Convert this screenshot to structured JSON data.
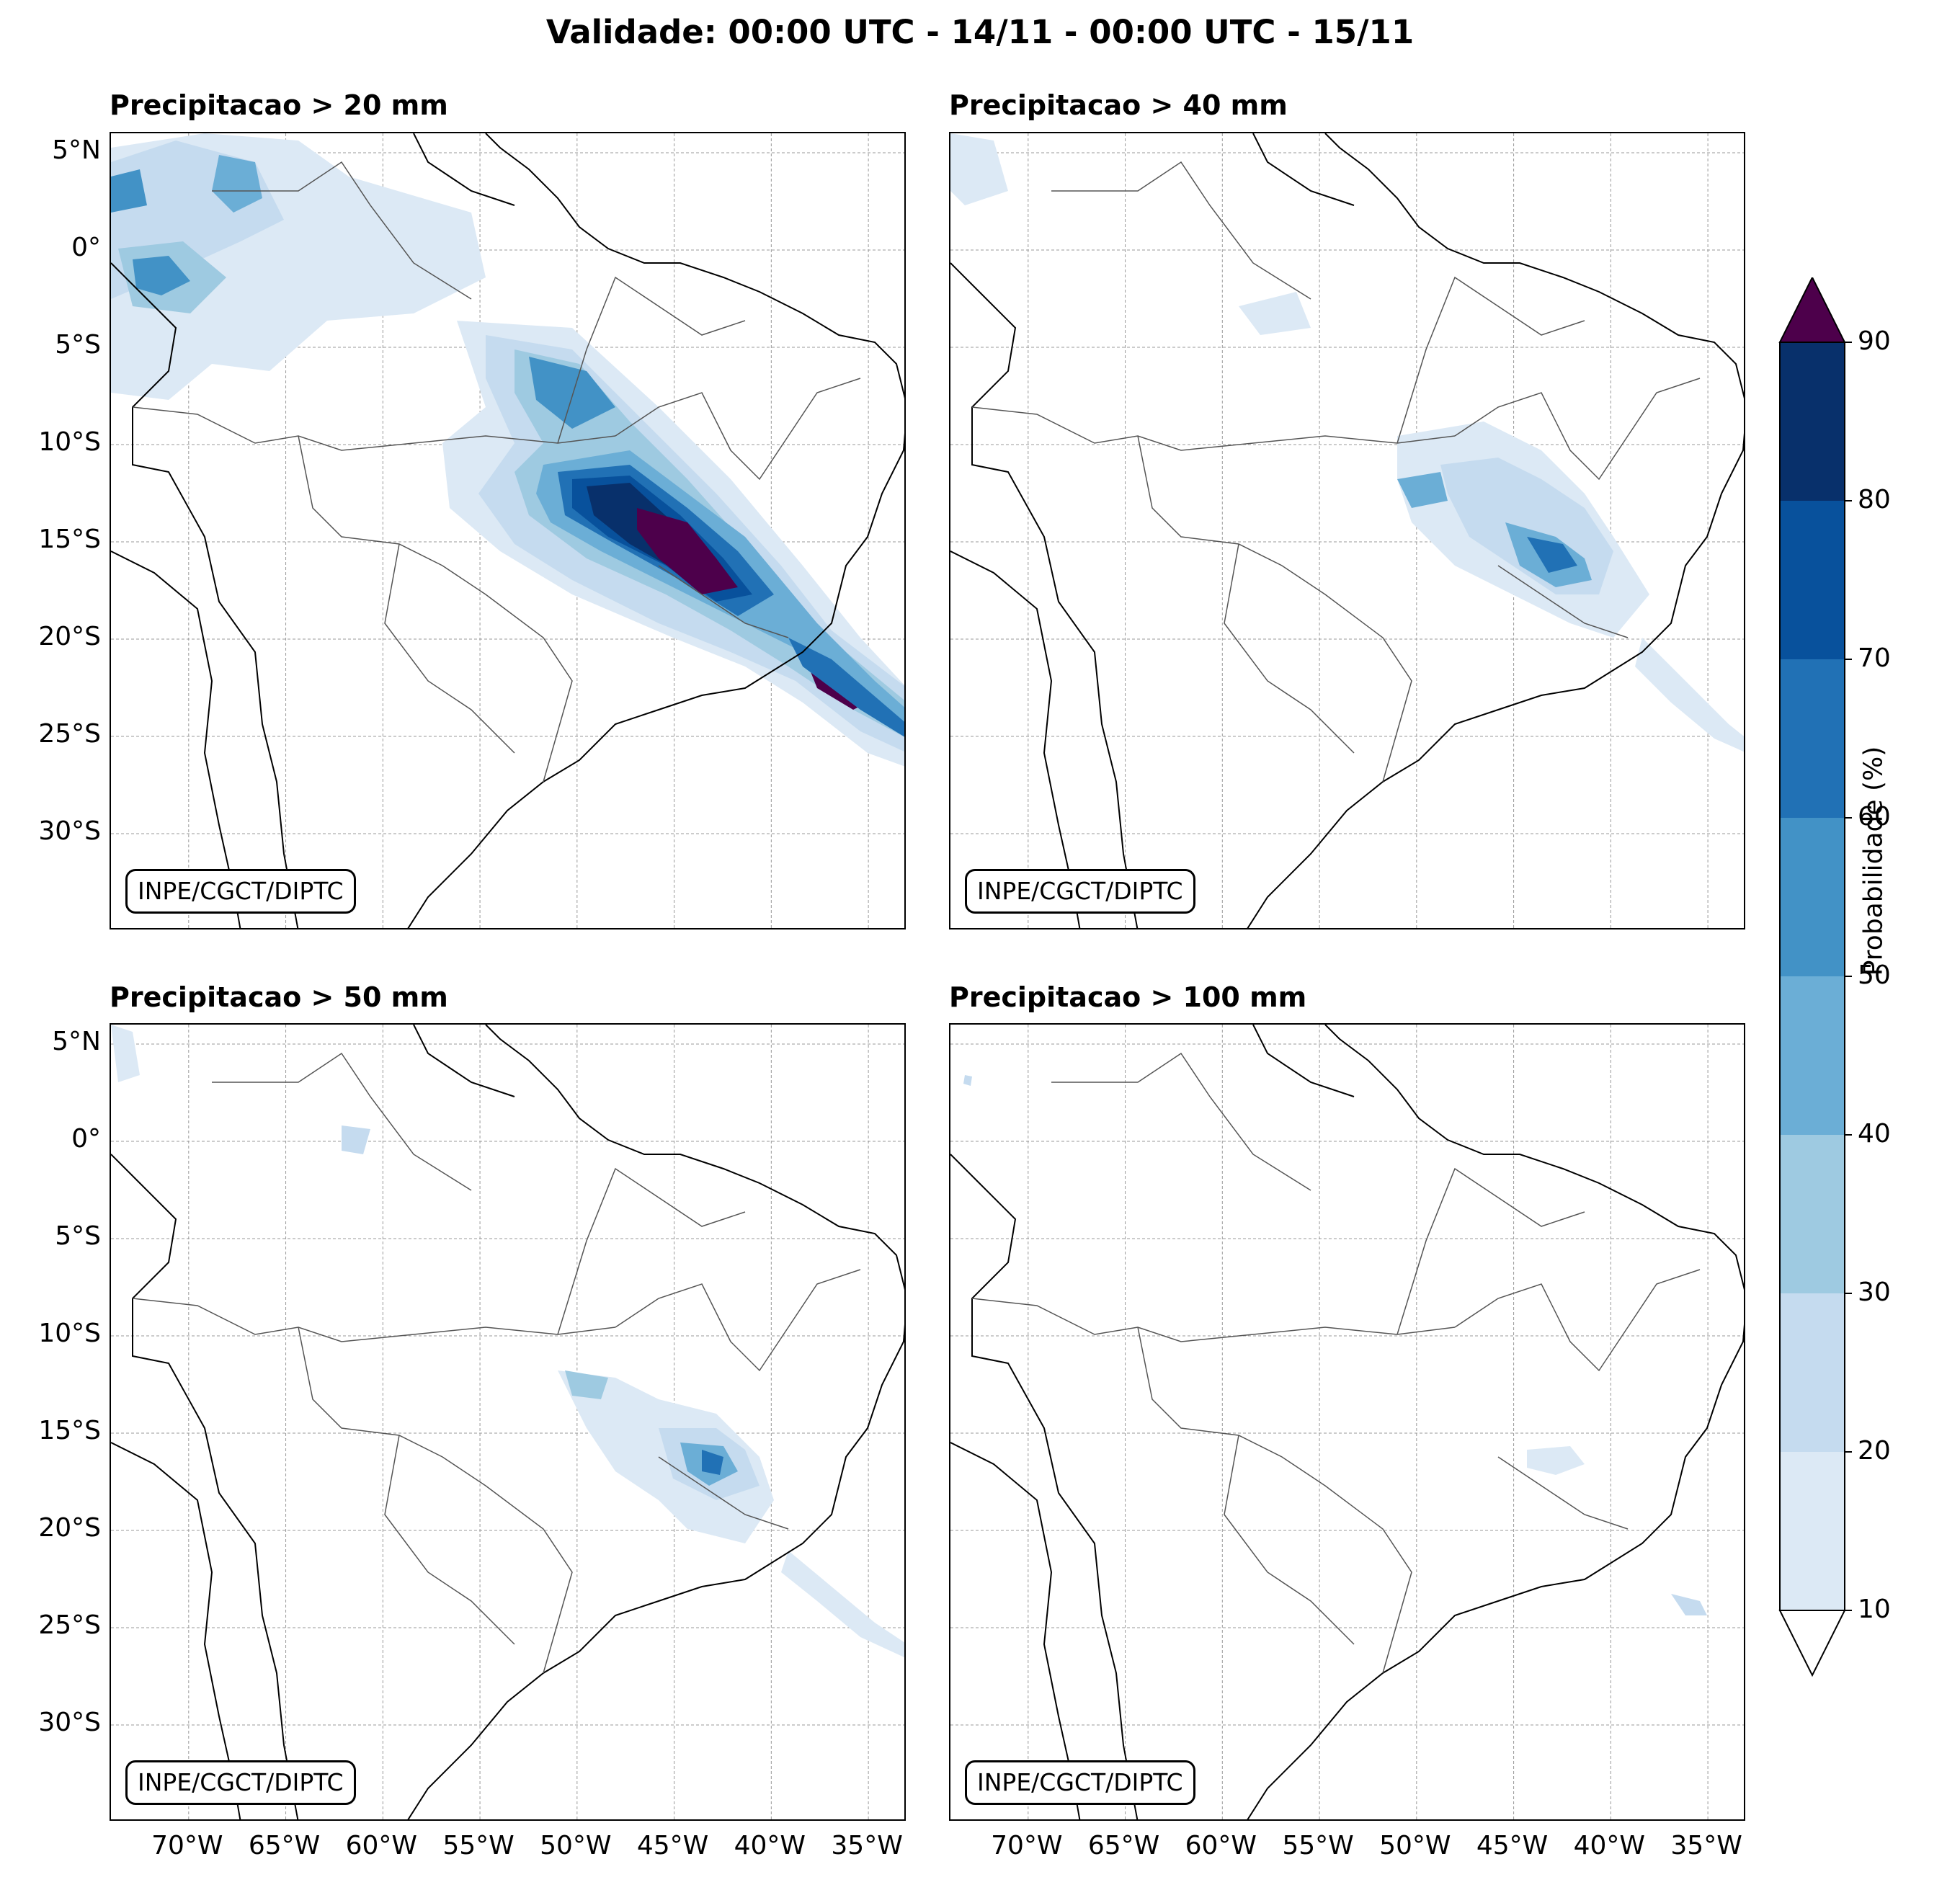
{
  "title": "Validade: 00:00 UTC - 14/11 - 00:00 UTC - 15/11",
  "credit": "INPE/CGCT/DIPTC",
  "panels": [
    {
      "title": "Precipitacao > 20 mm",
      "threshold_mm": 20
    },
    {
      "title": "Precipitacao > 40 mm",
      "threshold_mm": 40
    },
    {
      "title": "Precipitacao > 50 mm",
      "threshold_mm": 50
    },
    {
      "title": "Precipitacao > 100 mm",
      "threshold_mm": 100
    }
  ],
  "axes": {
    "lat_labels": [
      "5°N",
      "0°",
      "5°S",
      "10°S",
      "15°S",
      "20°S",
      "25°S",
      "30°S"
    ],
    "lon_labels": [
      "70°W",
      "65°W",
      "60°W",
      "55°W",
      "50°W",
      "45°W",
      "40°W",
      "35°W"
    ],
    "lat_range": [
      -35,
      6
    ],
    "lon_range": [
      -74,
      -33
    ]
  },
  "colorbar": {
    "label": "Probabilidade (%)",
    "ticks": [
      "10",
      "20",
      "30",
      "40",
      "50",
      "60",
      "70",
      "80",
      "90"
    ],
    "colors": [
      "#dce9f5",
      "#c5dbef",
      "#9ecae1",
      "#6baed6",
      "#4292c6",
      "#2171b5",
      "#08519c",
      "#08306b"
    ],
    "over_color": "#4d004b",
    "under_color": "#ffffff"
  }
}
